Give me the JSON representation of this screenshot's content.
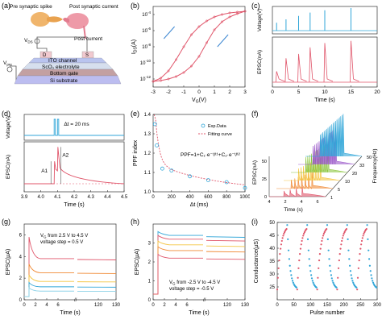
{
  "figure": {
    "panel_letters": [
      "(a)",
      "(b)",
      "(c)",
      "(d)",
      "(e)",
      "(f)",
      "(g)",
      "(h)",
      "(i)"
    ]
  },
  "panel_a": {
    "labels": {
      "pre": "Pre synaptic spike",
      "post": "Post synaptic current",
      "vds": "V",
      "vds_sub": "DS",
      "post_current": "Post current",
      "d": "D",
      "s": "S",
      "vg": "V",
      "vg_sub": "pre",
      "ito": "ITO channel",
      "sco": "ScO",
      "sco_sub": "2",
      "sco_rest": " electrolyte",
      "gate": "Bottom gate",
      "substrate": "Si substrate"
    },
    "colors": {
      "ito": "#b9c4ef",
      "sco": "#d6dfee",
      "gate": "#c3a0a2",
      "substrate": "#bcbdf0",
      "electrode": "#f1c9cf"
    }
  },
  "chart_data": [
    {
      "panel": "b",
      "type": "line",
      "xlabel": "V",
      "xlabel_sub": "G",
      "xlabel_unit": "(V)",
      "ylabel": "I",
      "ylabel_sub": "DS",
      "ylabel_unit": "(A)",
      "xlim": [
        -3,
        3
      ],
      "xticks": [
        "-3",
        "-2",
        "-1",
        "0",
        "1",
        "2",
        "3"
      ],
      "ylog": true,
      "ylim_exp": [
        -13,
        -3
      ],
      "yticks": [
        "10",
        "10",
        "10",
        "10",
        "10"
      ],
      "ytick_exps": [
        "-4",
        "-6",
        "-8",
        "-10",
        "-12"
      ],
      "color": "#e0556a",
      "arrow_color": "#3b86d1",
      "forward": {
        "x": [
          -3,
          -2.5,
          -2,
          -1.5,
          -1,
          -0.5,
          0,
          0.5,
          1,
          1.5,
          2,
          2.5,
          3
        ],
        "y_log10": [
          -12.3,
          -12.2,
          -12.0,
          -11.7,
          -11.2,
          -10.4,
          -9.2,
          -7.5,
          -5.9,
          -4.9,
          -4.3,
          -3.9,
          -3.6
        ]
      },
      "backward": {
        "x": [
          3,
          2.5,
          2,
          1.5,
          1,
          0.5,
          0,
          -0.5,
          -1,
          -1.5,
          -2,
          -2.5,
          -3
        ],
        "y_log10": [
          -3.6,
          -3.7,
          -3.8,
          -4.0,
          -4.3,
          -4.8,
          -5.5,
          -6.5,
          -8.0,
          -9.6,
          -11.0,
          -11.9,
          -12.3
        ]
      }
    },
    {
      "panel": "c",
      "type": "line",
      "xlabel": "Time (s)",
      "ylabel_top": "Voltage(V)",
      "ylabel_bottom": "EPSC(nA)",
      "xlim": [
        0,
        20
      ],
      "xticks": [
        "0",
        "5",
        "10",
        "15",
        "20"
      ],
      "top_color": "#31a6d8",
      "bottom_color": "#e0556a",
      "pulse_times": [
        0.8,
        2.6,
        5.0,
        7.2,
        10.0,
        15.0
      ],
      "pulse_heights": [
        0.35,
        0.5,
        0.65,
        0.8,
        0.9,
        1.0
      ],
      "epsc_peaks": [
        0.25,
        0.55,
        0.65,
        0.8,
        0.9,
        0.95
      ]
    },
    {
      "panel": "d",
      "type": "line",
      "xlabel": "Time (s)",
      "ylabel_top": "Voltage(V)",
      "ylabel_bottom": "EPSC(nA)",
      "xlim": [
        3.9,
        4.5
      ],
      "xticks": [
        "3.9",
        "4.0",
        "4.1",
        "4.2",
        "4.3",
        "4.4",
        "4.5"
      ],
      "annotation": "Δt = 20 ms",
      "a1": "A1",
      "a2": "A2",
      "top_color": "#31a6d8",
      "bottom_color": "#e0556a",
      "pulse_times": [
        4.08,
        4.1
      ],
      "epsc_peaks": [
        0.58,
        0.95
      ]
    },
    {
      "panel": "e",
      "type": "scatter",
      "xlabel": "Δt (ms)",
      "ylabel": "PPF index",
      "xlim": [
        0,
        1000
      ],
      "ylim": [
        1.0,
        1.4
      ],
      "xticks": [
        "0",
        "200",
        "400",
        "600",
        "800",
        "1000"
      ],
      "yticks": [
        "1.0",
        "1.1",
        "1.2",
        "1.3",
        "1.4"
      ],
      "legend": [
        "Exp.Data",
        "Fitting curve"
      ],
      "formula": "PPF=1+C",
      "formula_rest": "·e",
      "x": [
        20,
        40,
        100,
        200,
        400,
        600,
        800,
        1000
      ],
      "y": [
        1.35,
        1.24,
        1.12,
        1.11,
        1.08,
        1.06,
        1.05,
        1.02
      ],
      "point_color": "#31a6d8",
      "fit_color": "#e0556a"
    },
    {
      "panel": "f",
      "type": "line",
      "xlabel": "Time (s)",
      "ylabel": "EPSC(nA)",
      "zlabel": "Frequency(Hz)",
      "freqs": [
        "1",
        "5",
        "10",
        "20",
        "33",
        "50"
      ],
      "xticks": [
        "4",
        "2",
        "4",
        "6"
      ],
      "yticks": [
        "0",
        "25",
        "50"
      ],
      "series_colors": [
        "#e0556a",
        "#f08a35",
        "#f4c542",
        "#8cc63f",
        "#9b59c9",
        "#31a6d8"
      ]
    },
    {
      "panel": "g",
      "type": "line",
      "xlabel": "Time (s)",
      "ylabel": "EPSC(µA)",
      "xlim_labels": [
        "0",
        "2",
        "4",
        "6",
        "120",
        "130"
      ],
      "yticks": [
        "0",
        "2",
        "4",
        "6"
      ],
      "annotation_line1": "V",
      "annotation_line1_sub": "G",
      "annotation_line1_rest": " from 2.5 V to 4.5 V",
      "annotation_line2": "voltage step = 0.5 V",
      "series_colors": [
        "#e0556a",
        "#f08a35",
        "#f4c542",
        "#31a6d8",
        "#8fd3e8"
      ],
      "steady_levels": [
        3.8,
        2.5,
        1.7,
        1.2,
        0.8
      ],
      "peak_levels": [
        5.8,
        3.3,
        2.3,
        1.6,
        1.1
      ]
    },
    {
      "panel": "h",
      "type": "line",
      "xlabel": "Time (s)",
      "ylabel": "EPSC(µA)",
      "xlim_labels": [
        "0",
        "2",
        "4",
        "6",
        "120",
        "130"
      ],
      "yticks": [
        "0",
        "1",
        "2",
        "3"
      ],
      "annotation_line1": "V",
      "annotation_line1_sub": "G",
      "annotation_line1_rest": " from -2.5 V to -4.5 V",
      "annotation_line2": "voltage step = -0.5 V",
      "series_colors": [
        "#31a6d8",
        "#e0556a",
        "#f4c542",
        "#f08a35",
        "#e0556a"
      ],
      "steady_levels": [
        3.4,
        3.2,
        2.9,
        2.6,
        2.2
      ],
      "peak_levels": [
        3.6,
        3.4,
        3.1,
        2.8,
        2.4
      ]
    },
    {
      "panel": "i",
      "type": "scatter",
      "xlabel": "Pulse number",
      "ylabel": "Conductance(µS)",
      "xlim": [
        0,
        300
      ],
      "ylim": [
        20,
        50
      ],
      "xticks": [
        "0",
        "50",
        "100",
        "150",
        "200",
        "250",
        "300"
      ],
      "yticks": [
        "25",
        "30",
        "35",
        "40",
        "45",
        "50"
      ],
      "potentiation_color": "#e0556a",
      "depression_color": "#31a6d8",
      "cycles": 5
    }
  ]
}
